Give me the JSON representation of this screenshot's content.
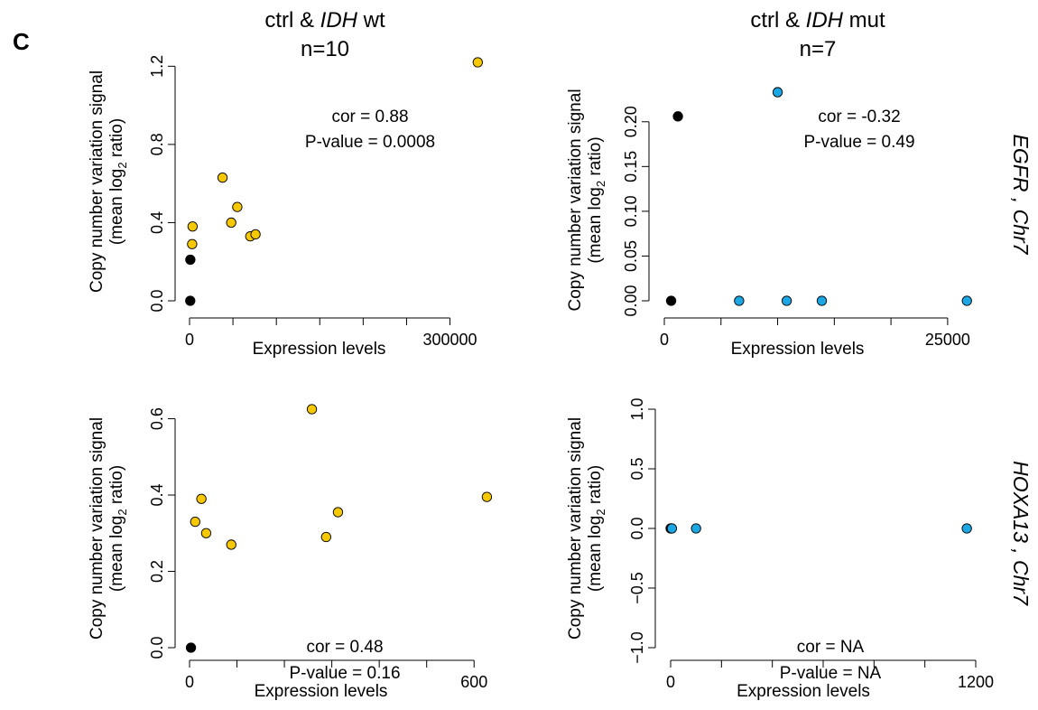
{
  "panel_letter": "C",
  "column_titles": [
    {
      "prefix": "ctrl & ",
      "gene": "IDH",
      "suffix": " wt",
      "n": "n=10"
    },
    {
      "prefix": "ctrl & ",
      "gene": "IDH",
      "suffix": " mut",
      "n": "n=7"
    }
  ],
  "row_labels": [
    {
      "gene": "EGFR",
      "chr": " , Chr7"
    },
    {
      "gene": "HOXA13",
      "chr": " , Chr7"
    }
  ],
  "ylabel_line1": "Copy number variation signal",
  "ylabel_line2_pre": "(mean log",
  "ylabel_sub": "2",
  "ylabel_line2_post": " ratio)",
  "colors": {
    "wt_points": "#f5c800",
    "mut_points": "#1ba6e4",
    "ctrl_points": "#000000"
  },
  "chart_data": [
    {
      "type": "scatter",
      "xlabel": "Expression levels",
      "xlim": [
        0,
        340000
      ],
      "ylim": [
        0,
        1.22
      ],
      "x_tick_labels": [
        {
          "value": 0,
          "label": "0"
        },
        {
          "value": 300000,
          "label": "300000"
        }
      ],
      "x_minor_ticks": [
        0,
        50000,
        100000,
        150000,
        200000,
        250000,
        300000
      ],
      "y_ticks": [
        {
          "value": 0,
          "label": "0.0"
        },
        {
          "value": 0.4,
          "label": "0.4"
        },
        {
          "value": 0.8,
          "label": "0.8"
        },
        {
          "value": 1.2,
          "label": "1.2"
        }
      ],
      "annotation": [
        "cor = 0.88",
        "P-value = 0.0008"
      ],
      "series": [
        {
          "group": "ctrl",
          "x": [
            800,
            900
          ],
          "y": [
            0.0,
            0.21
          ]
        },
        {
          "group": "IDH wt",
          "x": [
            3000,
            3500,
            38000,
            55000,
            48000,
            70000,
            76000,
            332000
          ],
          "y": [
            0.29,
            0.38,
            0.63,
            0.48,
            0.4,
            0.33,
            0.34,
            1.22
          ]
        }
      ]
    },
    {
      "type": "scatter",
      "xlabel": "Expression levels",
      "xlim": [
        0,
        27000
      ],
      "ylim": [
        0,
        0.225
      ],
      "x_tick_labels": [
        {
          "value": 0,
          "label": "0"
        },
        {
          "value": 25000,
          "label": "25000"
        }
      ],
      "x_minor_ticks": [
        0,
        5000,
        10000,
        15000,
        20000,
        25000
      ],
      "y_ticks": [
        {
          "value": 0,
          "label": "0.00"
        },
        {
          "value": 0.05,
          "label": "0.05"
        },
        {
          "value": 0.1,
          "label": "0.10"
        },
        {
          "value": 0.15,
          "label": "0.15"
        },
        {
          "value": 0.2,
          "label": "0.20"
        }
      ],
      "annotation": [
        "cor = -0.32",
        "P-value = 0.49"
      ],
      "series": [
        {
          "group": "ctrl",
          "x": [
            600,
            1200
          ],
          "y": [
            0.0,
            0.206
          ]
        },
        {
          "group": "IDH mut",
          "x": [
            6600,
            10000,
            10800,
            13900,
            26700
          ],
          "y": [
            0.0,
            0.233,
            0.0,
            0.0,
            0.0
          ]
        }
      ]
    },
    {
      "type": "scatter",
      "xlabel": "Expression levels",
      "xlim": [
        0,
        630
      ],
      "ylim": [
        0,
        0.625
      ],
      "x_tick_labels": [
        {
          "value": 0,
          "label": "0"
        },
        {
          "value": 600,
          "label": "600"
        }
      ],
      "x_minor_ticks": [
        0,
        100,
        200,
        300,
        400,
        500,
        600
      ],
      "y_ticks": [
        {
          "value": 0,
          "label": "0.0"
        },
        {
          "value": 0.2,
          "label": "0.2"
        },
        {
          "value": 0.4,
          "label": "0.4"
        },
        {
          "value": 0.6,
          "label": "0.6"
        }
      ],
      "annotation": [
        "cor = 0.48",
        "P-value = 0.16"
      ],
      "series": [
        {
          "group": "ctrl",
          "x": [
            3
          ],
          "y": [
            0.0
          ]
        },
        {
          "group": "IDH wt",
          "x": [
            12,
            25,
            35,
            88,
            258,
            288,
            313,
            627
          ],
          "y": [
            0.33,
            0.39,
            0.3,
            0.27,
            0.625,
            0.29,
            0.355,
            0.395
          ]
        }
      ]
    },
    {
      "type": "scatter",
      "xlabel": "Expression levels",
      "xlim": [
        0,
        1200
      ],
      "ylim": [
        -1.0,
        1.0
      ],
      "x_tick_labels": [
        {
          "value": 0,
          "label": "0"
        },
        {
          "value": 1200,
          "label": "1200"
        }
      ],
      "x_minor_ticks": [
        0,
        200,
        400,
        600,
        800,
        1000,
        1200
      ],
      "y_ticks": [
        {
          "value": -1,
          "label": "−1.0"
        },
        {
          "value": -0.5,
          "label": "−0.5"
        },
        {
          "value": 0,
          "label": "0.0"
        },
        {
          "value": 0.5,
          "label": "0.5"
        },
        {
          "value": 1,
          "label": "1.0"
        }
      ],
      "annotation": [
        "cor = NA",
        "P-value = NA"
      ],
      "series": [
        {
          "group": "ctrl",
          "x": [
            0
          ],
          "y": [
            0.0
          ]
        },
        {
          "group": "IDH mut",
          "x": [
            1,
            3,
            5,
            100,
            1165
          ],
          "y": [
            0.0,
            0.0,
            0.0,
            0.0,
            0.0
          ]
        }
      ]
    }
  ]
}
